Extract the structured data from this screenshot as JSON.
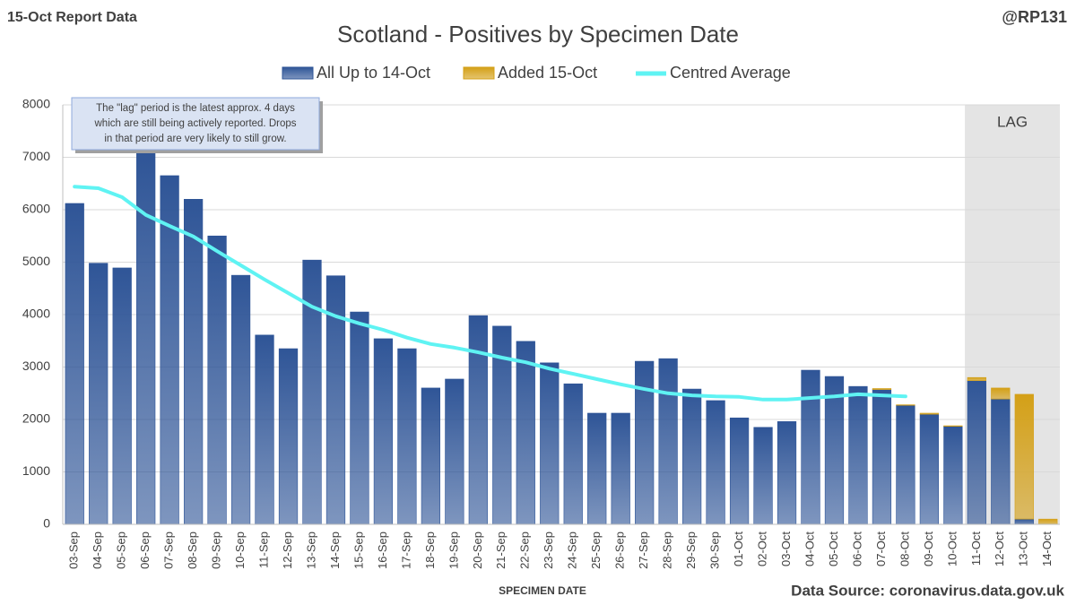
{
  "header": {
    "left": "15-Oct Report Data",
    "right": "@RP131"
  },
  "chart_data": {
    "type": "stacked_bar_line",
    "title": "Scotland - Positives by Specimen Date",
    "x_label": "SPECIMEN DATE",
    "source": "Data Source: coronavirus.data.gov.uk",
    "annotation": [
      "The \"lag\" period is the latest approx. 4 days",
      "which are still being actively reported.  Drops",
      "in that period are very likely to still grow."
    ],
    "shaded_region": {
      "label": "LAG",
      "from": "11-Oct",
      "to": "14-Oct"
    },
    "categories": [
      "03-Sep",
      "04-Sep",
      "05-Sep",
      "06-Sep",
      "07-Sep",
      "08-Sep",
      "09-Sep",
      "10-Sep",
      "11-Sep",
      "12-Sep",
      "13-Sep",
      "14-Sep",
      "15-Sep",
      "16-Sep",
      "17-Sep",
      "18-Sep",
      "19-Sep",
      "20-Sep",
      "21-Sep",
      "22-Sep",
      "23-Sep",
      "24-Sep",
      "25-Sep",
      "26-Sep",
      "27-Sep",
      "28-Sep",
      "29-Sep",
      "30-Sep",
      "01-Oct",
      "02-Oct",
      "03-Oct",
      "04-Oct",
      "05-Oct",
      "06-Oct",
      "07-Oct",
      "08-Oct",
      "09-Oct",
      "10-Oct",
      "11-Oct",
      "12-Oct",
      "13-Oct",
      "14-Oct"
    ],
    "series": [
      {
        "name": "All Up to 14-Oct",
        "kind": "bar",
        "color": "#2f5597",
        "values": [
          6120,
          4980,
          4890,
          7080,
          6650,
          6200,
          5500,
          4750,
          3610,
          3350,
          5040,
          4740,
          4050,
          3540,
          3350,
          2600,
          2770,
          3980,
          3780,
          3490,
          3080,
          2680,
          2120,
          2120,
          3110,
          3160,
          2580,
          2360,
          2030,
          1850,
          1960,
          2940,
          2820,
          2630,
          2570,
          2270,
          2100,
          1870,
          2740,
          2390,
          100,
          0
        ]
      },
      {
        "name": "Added 15-Oct",
        "kind": "bar",
        "color": "#d4a017",
        "values": [
          0,
          0,
          0,
          0,
          0,
          0,
          0,
          0,
          0,
          0,
          0,
          0,
          0,
          0,
          0,
          0,
          0,
          0,
          0,
          0,
          0,
          0,
          0,
          0,
          0,
          0,
          0,
          0,
          0,
          0,
          0,
          0,
          0,
          0,
          20,
          10,
          20,
          10,
          60,
          210,
          2380,
          100
        ]
      },
      {
        "name": "Centred Average",
        "kind": "line",
        "color": "#5ff3f3",
        "values": [
          6440,
          6410,
          6240,
          5900,
          5690,
          5490,
          5210,
          4940,
          4670,
          4410,
          4150,
          3970,
          3830,
          3710,
          3560,
          3440,
          3370,
          3280,
          3180,
          3090,
          2970,
          2870,
          2770,
          2670,
          2580,
          2500,
          2460,
          2440,
          2430,
          2380,
          2380,
          2410,
          2440,
          2480,
          2460,
          2440,
          null,
          null,
          null,
          null,
          null,
          null
        ]
      }
    ],
    "ylim": [
      0,
      8000
    ],
    "yticks": [
      0,
      1000,
      2000,
      3000,
      4000,
      5000,
      6000,
      7000,
      8000
    ],
    "grid": true
  }
}
